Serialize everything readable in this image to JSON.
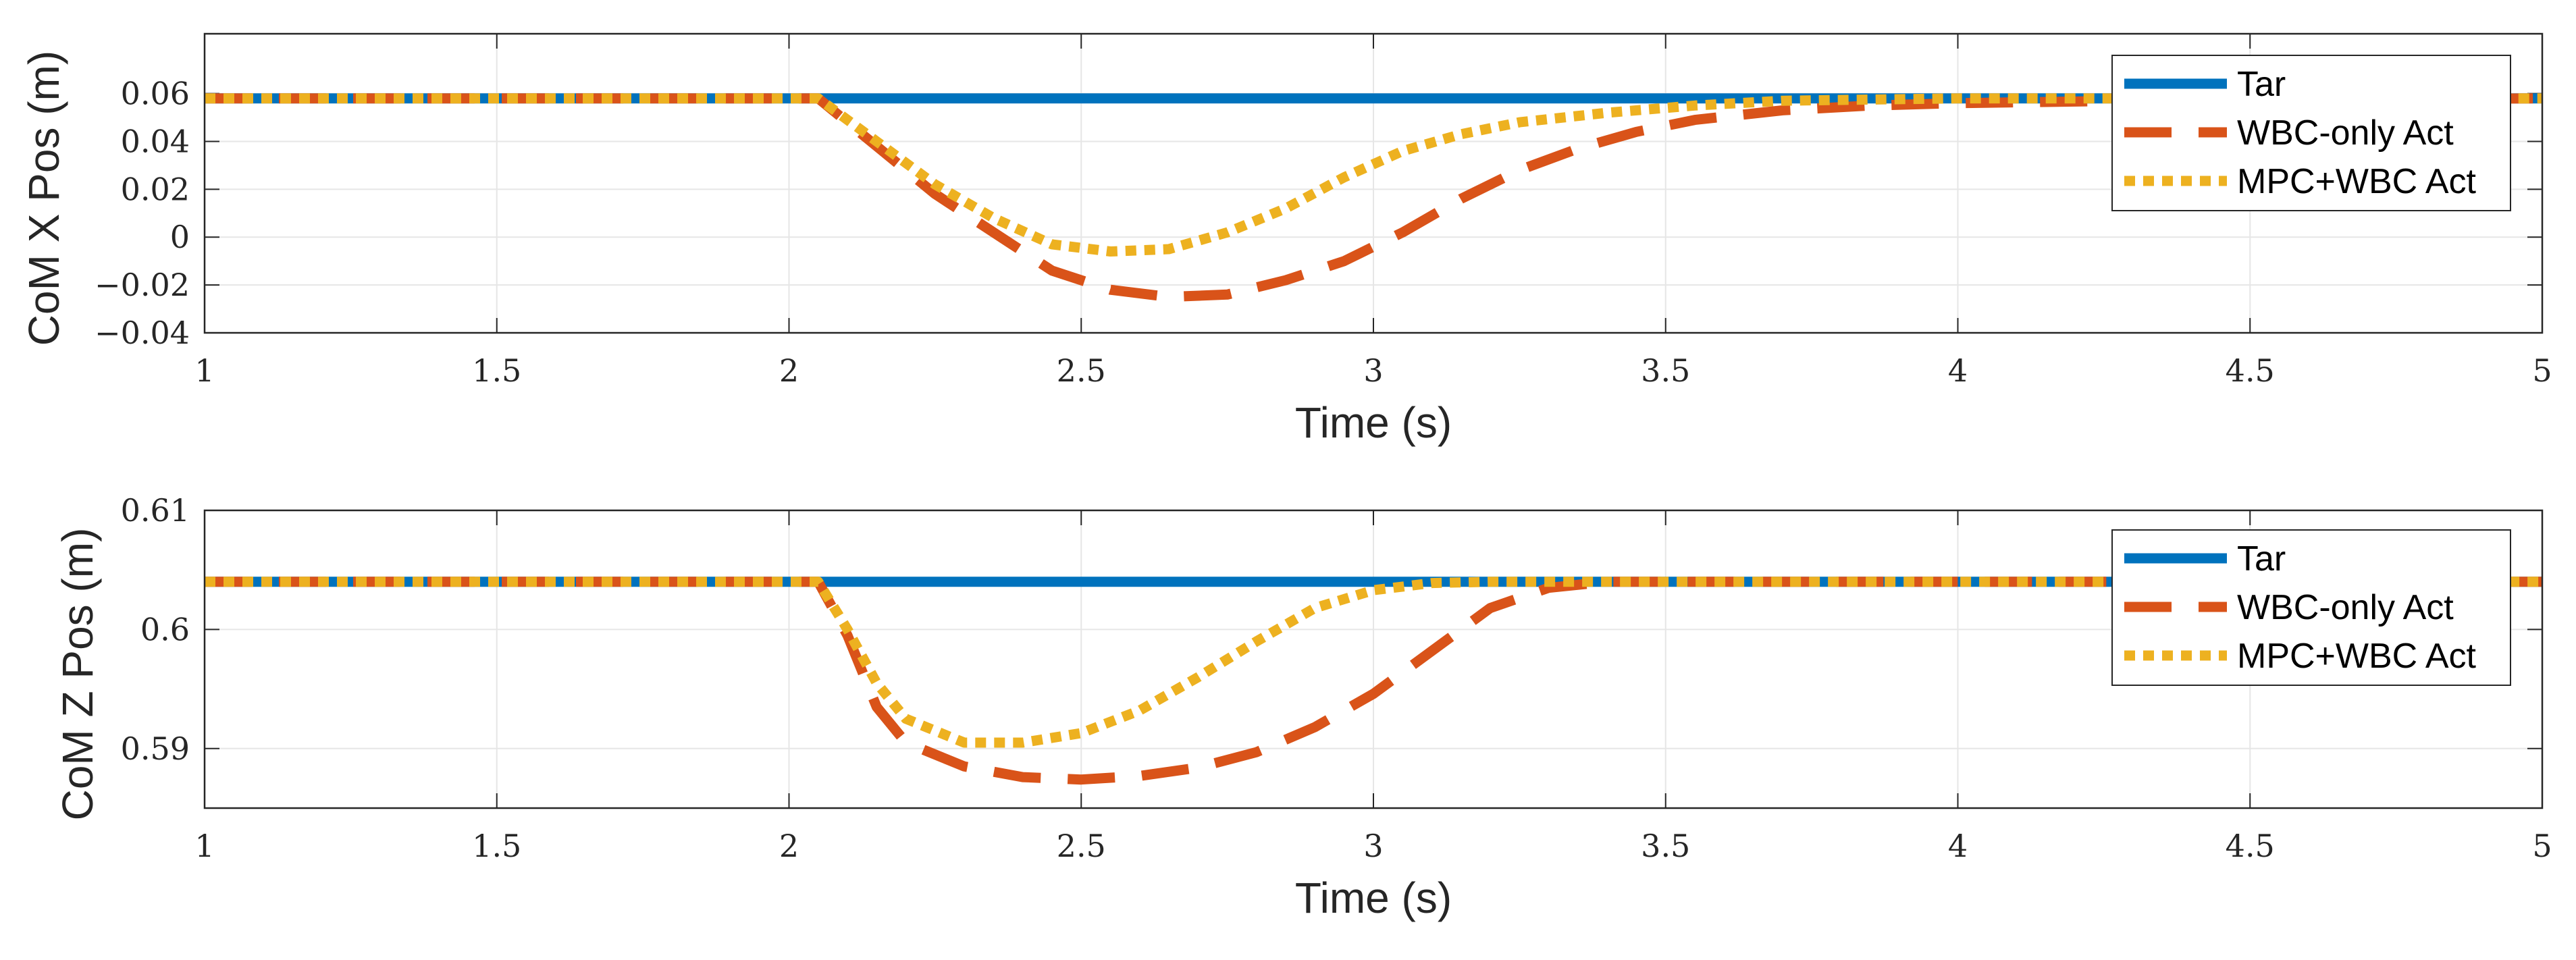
{
  "chart_data": [
    {
      "type": "line",
      "title": "",
      "xlabel": "Time (s)",
      "ylabel": "CoM X Pos (m)",
      "xlim": [
        1,
        5
      ],
      "ylim": [
        -0.04,
        0.085
      ],
      "xticks": [
        1,
        1.5,
        2,
        2.5,
        3,
        3.5,
        4,
        4.5,
        5
      ],
      "xtick_labels": [
        "1",
        "1.5",
        "2",
        "2.5",
        "3",
        "3.5",
        "4",
        "4.5",
        "5"
      ],
      "yticks": [
        -0.04,
        -0.02,
        0,
        0.02,
        0.04,
        0.06
      ],
      "ytick_labels": [
        "−0.04",
        "−0.02",
        "0",
        "0.02",
        "0.04",
        "0.06"
      ],
      "grid": true,
      "legend_position": "top-right",
      "series": [
        {
          "name": "Tar",
          "color": "#0072BD",
          "style": "solid",
          "x": [
            1,
            5
          ],
          "y": [
            0.058,
            0.058
          ]
        },
        {
          "name": "WBC-only Act",
          "color": "#D95319",
          "style": "dashed",
          "x": [
            1,
            2.05,
            2.15,
            2.25,
            2.35,
            2.45,
            2.55,
            2.65,
            2.75,
            2.85,
            2.95,
            3.05,
            3.15,
            3.25,
            3.35,
            3.45,
            3.55,
            3.7,
            3.85,
            4.0,
            4.3,
            5
          ],
          "y": [
            0.058,
            0.058,
            0.038,
            0.018,
            0.002,
            -0.014,
            -0.022,
            -0.025,
            -0.024,
            -0.018,
            -0.01,
            0.002,
            0.016,
            0.028,
            0.037,
            0.044,
            0.049,
            0.053,
            0.055,
            0.056,
            0.057,
            0.058
          ]
        },
        {
          "name": "MPC+WBC Act",
          "color": "#EDB120",
          "style": "dotted",
          "x": [
            1,
            2.05,
            2.15,
            2.25,
            2.35,
            2.45,
            2.55,
            2.65,
            2.75,
            2.85,
            2.95,
            3.05,
            3.15,
            3.25,
            3.4,
            3.55,
            3.7,
            4.0,
            5
          ],
          "y": [
            0.058,
            0.058,
            0.04,
            0.022,
            0.008,
            -0.003,
            -0.006,
            -0.005,
            0.002,
            0.012,
            0.025,
            0.036,
            0.043,
            0.048,
            0.052,
            0.055,
            0.057,
            0.058,
            0.058
          ]
        }
      ]
    },
    {
      "type": "line",
      "title": "",
      "xlabel": "Time (s)",
      "ylabel": "CoM Z Pos (m)",
      "xlim": [
        1,
        5
      ],
      "ylim": [
        0.585,
        0.61
      ],
      "xticks": [
        1,
        1.5,
        2,
        2.5,
        3,
        3.5,
        4,
        4.5,
        5
      ],
      "xtick_labels": [
        "1",
        "1.5",
        "2",
        "2.5",
        "3",
        "3.5",
        "4",
        "4.5",
        "5"
      ],
      "yticks": [
        0.59,
        0.6,
        0.61
      ],
      "ytick_labels": [
        "0.59",
        "0.6",
        "0.61"
      ],
      "grid": true,
      "legend_position": "top-right",
      "series": [
        {
          "name": "Tar",
          "color": "#0072BD",
          "style": "solid",
          "x": [
            1,
            5
          ],
          "y": [
            0.604,
            0.604
          ]
        },
        {
          "name": "WBC-only Act",
          "color": "#D95319",
          "style": "dashed",
          "x": [
            1,
            2.05,
            2.1,
            2.15,
            2.2,
            2.3,
            2.4,
            2.5,
            2.6,
            2.7,
            2.8,
            2.9,
            3.0,
            3.1,
            3.2,
            3.3,
            3.4,
            5
          ],
          "y": [
            0.604,
            0.604,
            0.5995,
            0.5935,
            0.5905,
            0.5885,
            0.5876,
            0.5874,
            0.5877,
            0.5884,
            0.5897,
            0.5918,
            0.5946,
            0.5982,
            0.6018,
            0.6035,
            0.604,
            0.604
          ]
        },
        {
          "name": "MPC+WBC Act",
          "color": "#EDB120",
          "style": "dotted",
          "x": [
            1,
            2.05,
            2.1,
            2.15,
            2.2,
            2.3,
            2.4,
            2.5,
            2.6,
            2.7,
            2.8,
            2.9,
            3.0,
            3.1,
            3.2,
            5
          ],
          "y": [
            0.604,
            0.604,
            0.6,
            0.5955,
            0.5925,
            0.5905,
            0.5905,
            0.5913,
            0.5932,
            0.596,
            0.599,
            0.6018,
            0.6033,
            0.6039,
            0.604,
            0.604
          ]
        }
      ]
    }
  ]
}
